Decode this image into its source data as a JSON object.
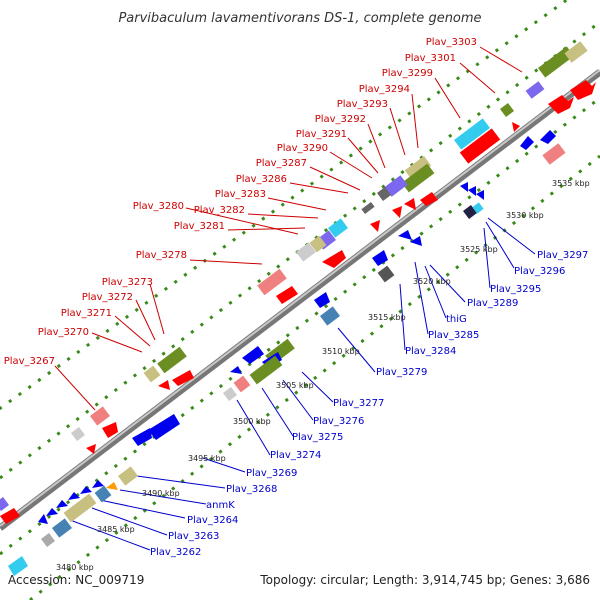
{
  "title": "Parvibaculum lavamentivorans DS-1, complete genome",
  "footer": {
    "accession": "Accession: NC_009719",
    "summary": "Topology: circular; Length: 3,914,745 bp; Genes: 3,686"
  },
  "ticks": [
    "3480 kbp",
    "3485 kbp",
    "3490 kbp",
    "3495 kbp",
    "3500 kbp",
    "3505 kbp",
    "3510 kbp",
    "3515 kbp",
    "3520 kbp",
    "3525 kbp",
    "3530 kbp",
    "3535 kbp"
  ],
  "labels_forward": [
    "Plav_3303",
    "Plav_3301",
    "Plav_3299",
    "Plav_3294",
    "Plav_3293",
    "Plav_3292",
    "Plav_3291",
    "Plav_3290",
    "Plav_3287",
    "Plav_3286",
    "Plav_3283",
    "Plav_3282",
    "Plav_3281",
    "Plav_3280",
    "Plav_3278",
    "Plav_3273",
    "Plav_3272",
    "Plav_3271",
    "Plav_3270",
    "Plav_3267"
  ],
  "labels_reverse": [
    "Plav_3297",
    "Plav_3296",
    "Plav_3295",
    "Plav_3289",
    "thiG",
    "Plav_3285",
    "Plav_3284",
    "Plav_3279",
    "Plav_3277",
    "Plav_3276",
    "Plav_3275",
    "Plav_3274",
    "Plav_3269",
    "Plav_3268",
    "anmK",
    "Plav_3264",
    "Plav_3263",
    "Plav_3262"
  ],
  "colors": {
    "backbone": "#888888",
    "forward_label": "#cc0000",
    "reverse_label": "#0000cc",
    "gene_red": "#ff0000",
    "gene_blue": "#0000ee",
    "gene_olive": "#6b8e23",
    "gene_pink": "#f08080",
    "gene_cyan": "#33ccee",
    "gene_purple": "#7b68ee",
    "gene_khaki": "#c8c080",
    "gene_grey": "#999999",
    "gene_steel": "#4682b4",
    "gene_orange": "#ff9900",
    "dotted_line": "#3a8a1a"
  }
}
